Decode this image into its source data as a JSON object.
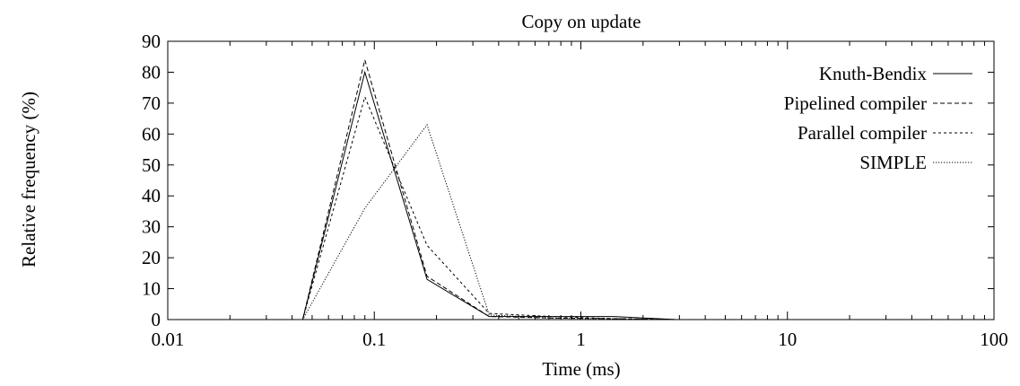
{
  "chart_data": {
    "type": "line",
    "title": "Copy on update",
    "xlabel": "Time (ms)",
    "ylabel": "Relative frequency (%)",
    "x_scale": "log",
    "xlim": [
      0.01,
      100
    ],
    "ylim": [
      0,
      90
    ],
    "x_ticks": [
      {
        "value": 0.01,
        "label": "0.01"
      },
      {
        "value": 0.1,
        "label": "0.1"
      },
      {
        "value": 1,
        "label": "1"
      },
      {
        "value": 10,
        "label": "10"
      },
      {
        "value": 100,
        "label": "100"
      }
    ],
    "y_ticks": [
      {
        "value": 0,
        "label": "0"
      },
      {
        "value": 10,
        "label": "10"
      },
      {
        "value": 20,
        "label": "20"
      },
      {
        "value": 30,
        "label": "30"
      },
      {
        "value": 40,
        "label": "40"
      },
      {
        "value": 50,
        "label": "50"
      },
      {
        "value": 60,
        "label": "60"
      },
      {
        "value": 70,
        "label": "70"
      },
      {
        "value": 80,
        "label": "80"
      },
      {
        "value": 90,
        "label": "90"
      }
    ],
    "legend_position": "top-right",
    "grid": false,
    "series": [
      {
        "name": "Knuth-Bendix",
        "dash": "none",
        "x": [
          0.01,
          0.045,
          0.09,
          0.18,
          0.36,
          0.72,
          1.45,
          2.9,
          100
        ],
        "y": [
          0,
          0,
          80,
          13,
          1,
          1,
          1,
          0,
          0
        ]
      },
      {
        "name": "Pipelined compiler",
        "dash": "dashed",
        "x": [
          0.01,
          0.045,
          0.09,
          0.18,
          0.36,
          0.72,
          1.45,
          2.9,
          100
        ],
        "y": [
          0,
          0,
          84,
          14,
          1,
          0.5,
          0.3,
          0,
          0
        ]
      },
      {
        "name": "Parallel compiler",
        "dash": "short-dashed",
        "x": [
          0.01,
          0.045,
          0.09,
          0.18,
          0.36,
          0.72,
          1.45,
          2.9,
          100
        ],
        "y": [
          0,
          0,
          72,
          24,
          2,
          1,
          0.3,
          0,
          0
        ]
      },
      {
        "name": "SIMPLE",
        "dash": "dotted",
        "x": [
          0.01,
          0.045,
          0.09,
          0.18,
          0.36,
          0.72,
          1.45,
          2.9,
          100
        ],
        "y": [
          0,
          0,
          36,
          63,
          1.5,
          0.5,
          0.2,
          0,
          0
        ]
      }
    ]
  }
}
